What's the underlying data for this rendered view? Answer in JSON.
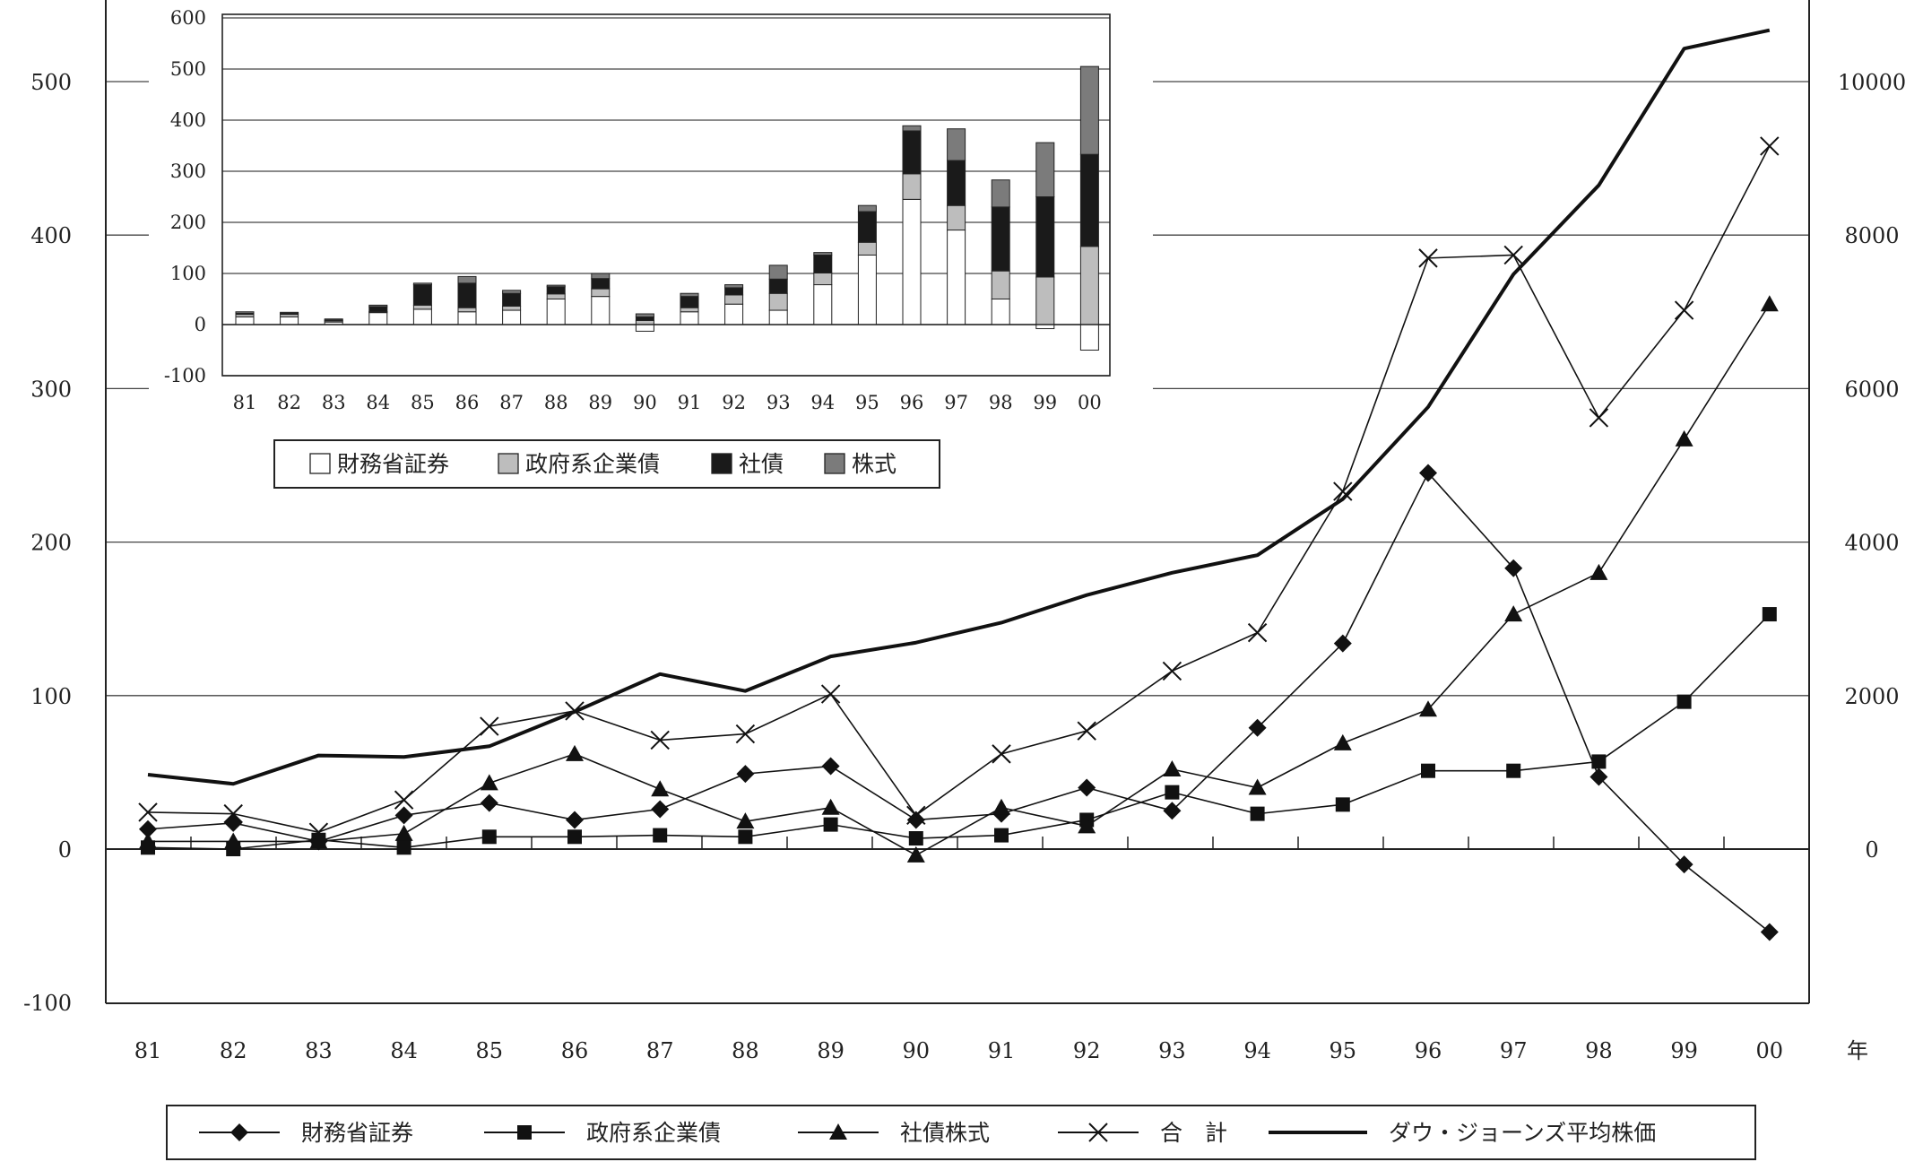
{
  "chart_data": [
    {
      "type": "line",
      "x_unit_label": "年",
      "categories": [
        "81",
        "82",
        "83",
        "84",
        "85",
        "86",
        "87",
        "88",
        "89",
        "90",
        "91",
        "92",
        "93",
        "94",
        "95",
        "96",
        "97",
        "98",
        "99",
        "00"
      ],
      "left_axis": {
        "ylim": [
          -100,
          500
        ],
        "ticks": [
          -100,
          0,
          100,
          200,
          300,
          400,
          500
        ]
      },
      "right_axis": {
        "ylim": [
          -2000,
          10000
        ],
        "ticks": [
          0,
          2000,
          4000,
          6000,
          8000,
          10000
        ]
      },
      "series": [
        {
          "name": "財務省証券",
          "marker": "diamond",
          "axis": "left",
          "values": [
            13,
            17,
            5,
            22,
            30,
            19,
            26,
            49,
            54,
            19,
            23,
            40,
            25,
            79,
            134,
            245,
            183,
            47,
            -10,
            -54
          ]
        },
        {
          "name": "政府系企業債",
          "marker": "square",
          "axis": "left",
          "values": [
            1,
            0,
            6,
            1,
            8,
            8,
            9,
            8,
            16,
            7,
            9,
            19,
            37,
            23,
            29,
            51,
            51,
            57,
            96,
            153
          ]
        },
        {
          "name": "社債株式",
          "marker": "triangle",
          "axis": "left",
          "values": [
            5,
            5,
            5,
            10,
            43,
            62,
            39,
            18,
            27,
            -4,
            27,
            15,
            52,
            40,
            69,
            91,
            153,
            180,
            267,
            355
          ]
        },
        {
          "name": "合　計",
          "marker": "x",
          "axis": "left",
          "values": [
            24,
            23,
            11,
            32,
            80,
            90,
            71,
            75,
            101,
            22,
            62,
            77,
            116,
            141,
            233,
            385,
            387,
            281,
            351,
            458
          ]
        },
        {
          "name": "ダウ・ジョーンズ平均株価",
          "marker": "none",
          "axis": "right",
          "bold": true,
          "values": [
            970,
            850,
            1220,
            1200,
            1340,
            1790,
            2280,
            2060,
            2510,
            2690,
            2950,
            3310,
            3600,
            3830,
            4560,
            5760,
            7490,
            8650,
            10430,
            10670
          ]
        }
      ],
      "grid": true,
      "legend_position": "bottom"
    },
    {
      "type": "bar",
      "stacked": true,
      "categories": [
        "81",
        "82",
        "83",
        "84",
        "85",
        "86",
        "87",
        "88",
        "89",
        "90",
        "91",
        "92",
        "93",
        "94",
        "95",
        "96",
        "97",
        "98",
        "99",
        "00"
      ],
      "ylim": [
        -100,
        600
      ],
      "ticks": [
        -100,
        0,
        100,
        200,
        300,
        400,
        500,
        600
      ],
      "series": [
        {
          "name": "財務省証券",
          "color": "#ffffff",
          "values": [
            15,
            15,
            5,
            25,
            30,
            25,
            28,
            50,
            55,
            -13,
            25,
            40,
            28,
            78,
            136,
            245,
            185,
            50,
            -8,
            -50
          ]
        },
        {
          "name": "政府系企業債",
          "color": "#bdbdbd",
          "values": [
            5,
            5,
            3,
            0,
            8,
            8,
            8,
            10,
            15,
            8,
            8,
            18,
            33,
            23,
            25,
            50,
            48,
            55,
            93,
            153
          ]
        },
        {
          "name": "社債",
          "color": "#1a1a1a",
          "values": [
            2,
            2,
            1,
            10,
            40,
            48,
            25,
            14,
            20,
            7,
            22,
            14,
            28,
            35,
            60,
            84,
            88,
            125,
            157,
            180
          ]
        },
        {
          "name": "株式",
          "color": "#7b7b7b",
          "values": [
            3,
            2,
            2,
            3,
            3,
            13,
            6,
            3,
            10,
            6,
            6,
            6,
            27,
            5,
            12,
            10,
            62,
            53,
            106,
            172
          ]
        }
      ],
      "grid": true,
      "legend_position": "bottom"
    }
  ]
}
